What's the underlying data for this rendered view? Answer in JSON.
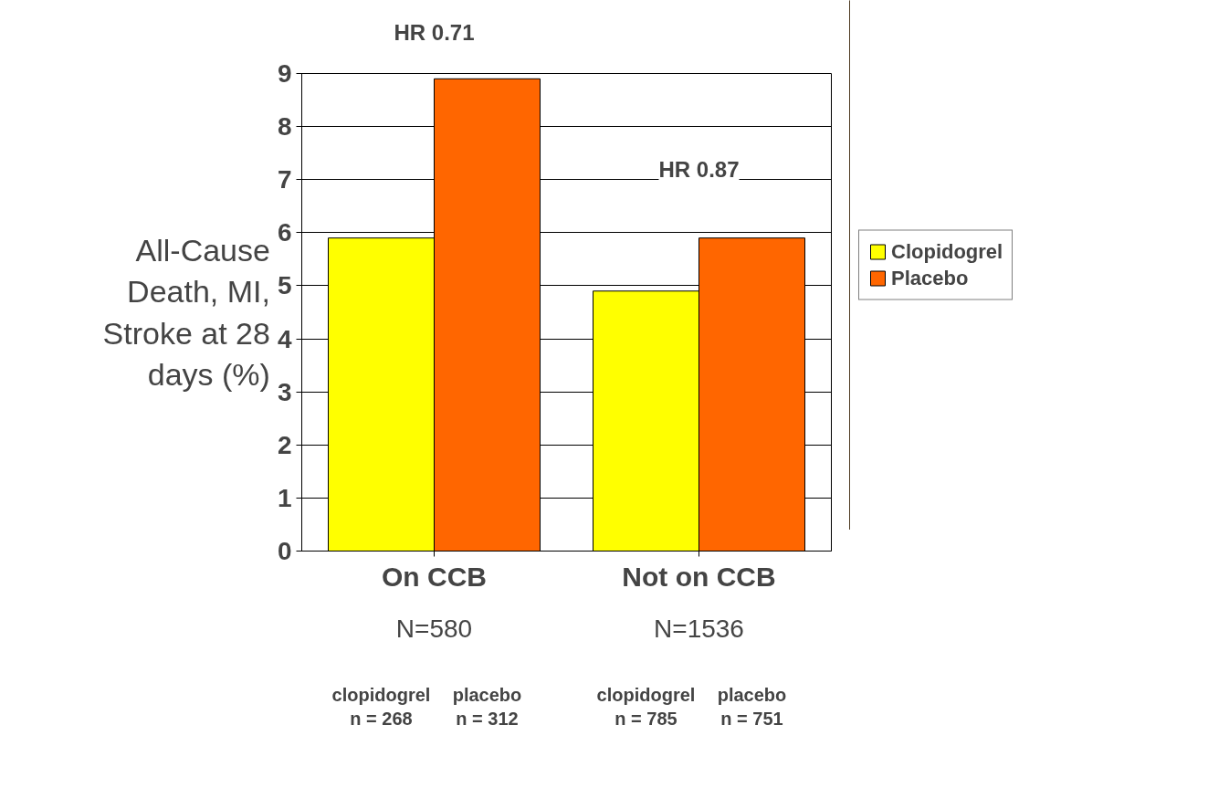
{
  "chart_data": {
    "type": "bar",
    "ylabel": "All-Cause Death, MI, Stroke at 28 days (%)",
    "categories": [
      "On CCB",
      "Not on CCB"
    ],
    "series": [
      {
        "name": "Clopidogrel",
        "color": "#ffff00",
        "values": [
          5.9,
          4.9
        ]
      },
      {
        "name": "Placebo",
        "color": "#ff6600",
        "values": [
          8.9,
          5.9
        ]
      }
    ],
    "ylim": [
      0,
      9
    ],
    "yticks": [
      0,
      1,
      2,
      3,
      4,
      5,
      6,
      7,
      8,
      9
    ],
    "grid": "y",
    "legend": "right",
    "annotations": [
      "HR 0.71",
      "HR 0.87",
      "N=580",
      "N=1536",
      "clopidogrel\nn = 268",
      "placebo\nn = 312",
      "clopidogrel\nn = 785",
      "placebo\nn = 751"
    ]
  }
}
